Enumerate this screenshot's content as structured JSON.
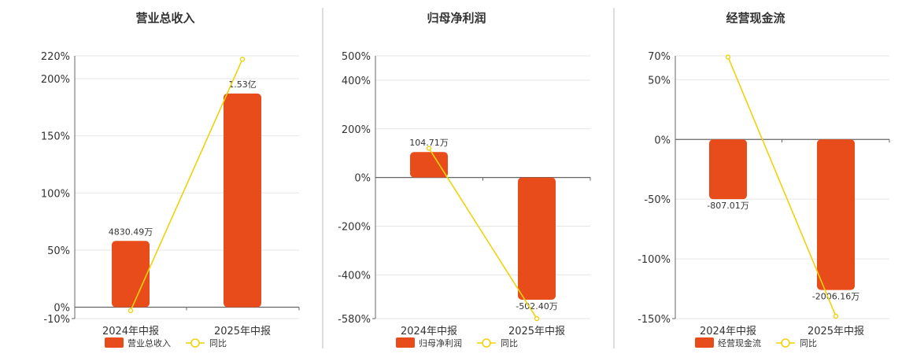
{
  "colors": {
    "bar": "#e84c1b",
    "line": "#f0d20a",
    "grid": "#e6e6e6",
    "axis": "#666666",
    "divider": "#bbbbbb"
  },
  "legend_line_label": "同比",
  "chart_data": [
    {
      "type": "bar",
      "title": "营业总收入",
      "categories": [
        "2024年中报",
        "2025年中报"
      ],
      "ylim": [
        -10,
        220
      ],
      "yticks": [
        220,
        200,
        150,
        100,
        50,
        0,
        -10
      ],
      "ytick_labels": [
        "220%",
        "200%",
        "150%",
        "100%",
        "50%",
        "0%",
        "-10%"
      ],
      "series": [
        {
          "name": "营业总收入",
          "kind": "bar",
          "values": [
            58,
            187
          ],
          "labels": [
            "4830.49万",
            "1.53亿"
          ]
        },
        {
          "name": "同比",
          "kind": "line",
          "values": [
            -3,
            217
          ]
        }
      ],
      "legend": "bottom",
      "grid": true
    },
    {
      "type": "bar",
      "title": "归母净利润",
      "categories": [
        "2024年中报",
        "2025年中报"
      ],
      "ylim": [
        -580,
        500
      ],
      "yticks": [
        500,
        400,
        200,
        0,
        -200,
        -400,
        -580
      ],
      "ytick_labels": [
        "500%",
        "400%",
        "200%",
        "0%",
        "-200%",
        "-400%",
        "-580%"
      ],
      "series": [
        {
          "name": "归母净利润",
          "kind": "bar",
          "values": [
            104.71,
            -502.4
          ],
          "labels": [
            "104.71万",
            "-502.40万"
          ]
        },
        {
          "name": "同比",
          "kind": "line",
          "values": [
            120,
            -580
          ]
        }
      ],
      "legend": "bottom",
      "grid": true
    },
    {
      "type": "bar",
      "title": "经营现金流",
      "categories": [
        "2024年中报",
        "2025年中报"
      ],
      "ylim": [
        -150,
        70
      ],
      "yticks": [
        70,
        50,
        0,
        -50,
        -100,
        -150
      ],
      "ytick_labels": [
        "70%",
        "50%",
        "0%",
        "-50%",
        "-100%",
        "-150%"
      ],
      "series": [
        {
          "name": "经营现金流",
          "kind": "bar",
          "values": [
            -50,
            -126
          ],
          "labels": [
            "-807.01万",
            "-2006.16万"
          ]
        },
        {
          "name": "同比",
          "kind": "line",
          "values": [
            69,
            -148
          ]
        }
      ],
      "legend": "bottom",
      "grid": true
    }
  ]
}
